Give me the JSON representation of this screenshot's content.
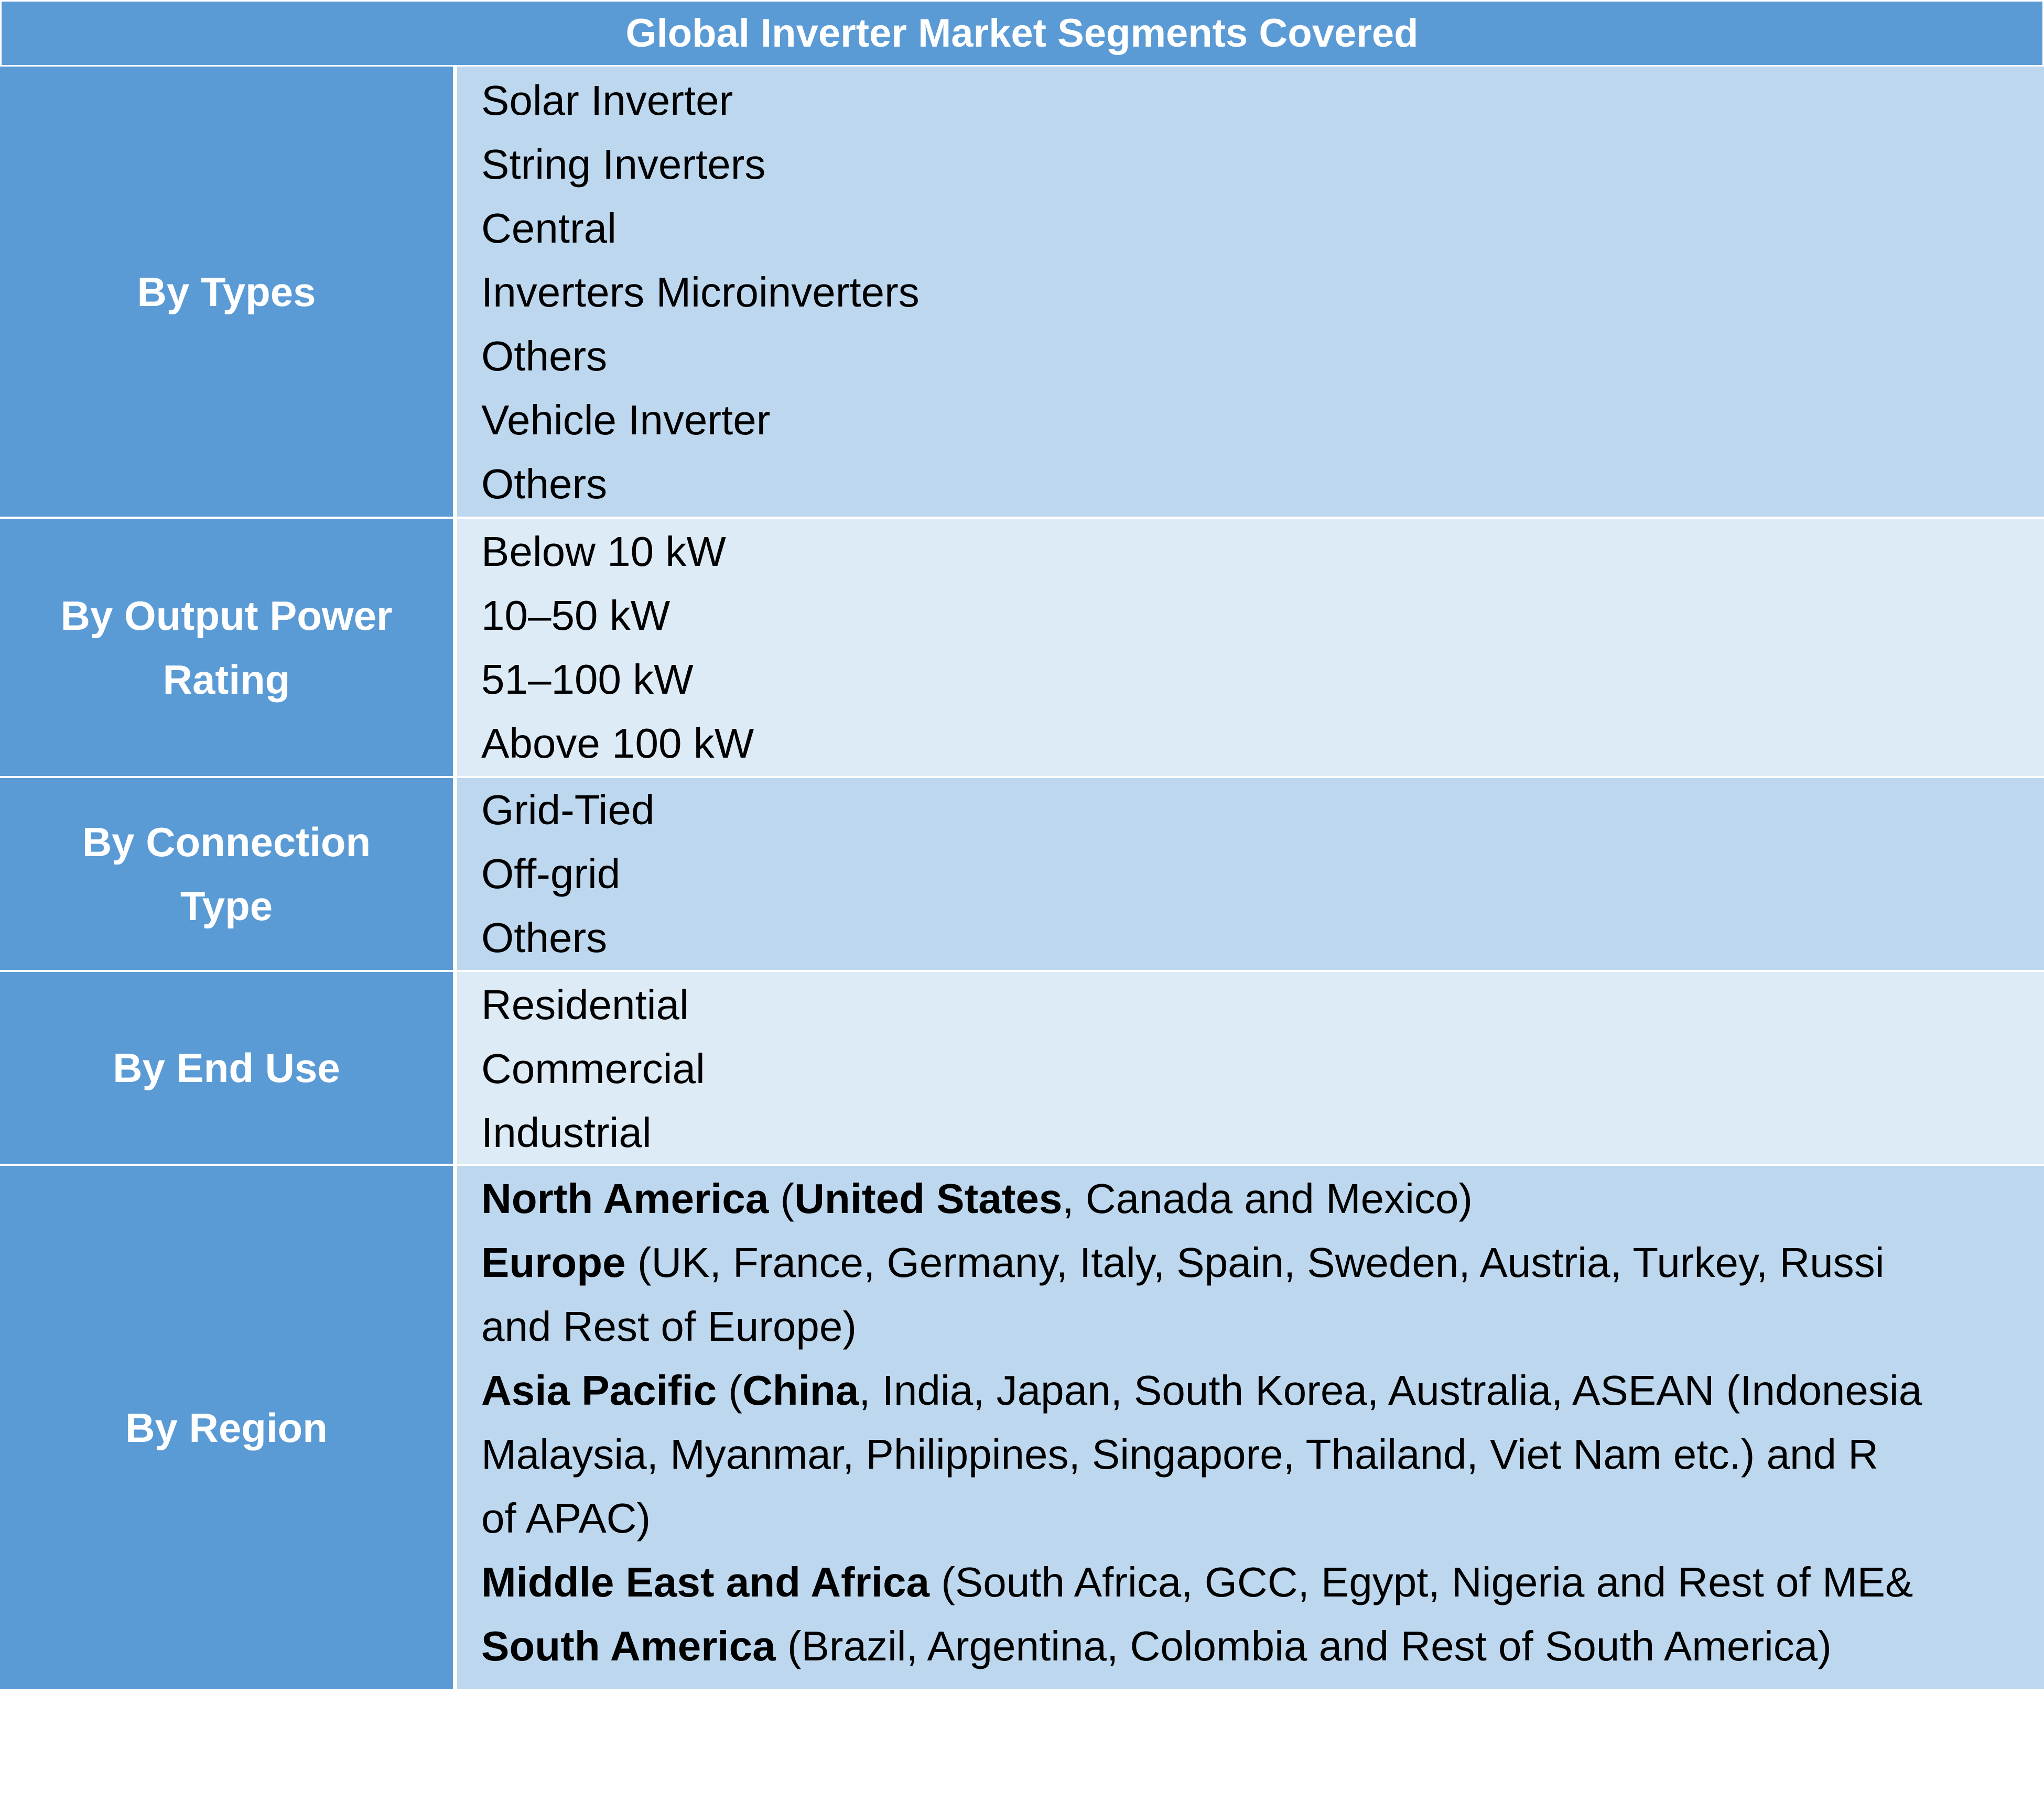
{
  "title": "Global Inverter Market Segments Covered",
  "colors": {
    "header": "#5B9BD5",
    "row_dark": "#BDD7EE",
    "row_light": "#DDEBF7"
  },
  "rows": [
    {
      "label": "By Types",
      "items": [
        "Solar Inverter",
        "String Inverters",
        "Central",
        "Inverters Microinverters",
        "Others",
        "Vehicle Inverter",
        "Others"
      ]
    },
    {
      "label": "By Output Power Rating",
      "items": [
        "Below 10 kW",
        "10–50 kW",
        "51–100 kW",
        "Above 100 kW"
      ]
    },
    {
      "label": "By Connection Type",
      "items": [
        "Grid-Tied",
        "Off-grid",
        "Others"
      ]
    },
    {
      "label": "By End Use",
      "items": [
        "Residential",
        "Commercial",
        "Industrial"
      ]
    },
    {
      "label": "By Region",
      "lines": [
        [
          {
            "text": "North America",
            "bold": true
          },
          {
            "text": " (",
            "bold": false
          },
          {
            "text": "United States",
            "bold": true
          },
          {
            "text": ", Canada and Mexico)",
            "bold": false
          }
        ],
        [
          {
            "text": "Europe",
            "bold": true
          },
          {
            "text": " (UK, France, Germany, Italy, Spain, Sweden, Austria, Turkey, Russi",
            "bold": false
          }
        ],
        [
          {
            "text": "and Rest of Europe)",
            "bold": false
          }
        ],
        [
          {
            "text": "Asia Pacific",
            "bold": true
          },
          {
            "text": " (",
            "bold": false
          },
          {
            "text": "China",
            "bold": true
          },
          {
            "text": ", India, Japan, South Korea, Australia, ASEAN (Indonesia",
            "bold": false
          }
        ],
        [
          {
            "text": "Malaysia, Myanmar, Philippines, Singapore, Thailand, Viet Nam etc.) and R",
            "bold": false
          }
        ],
        [
          {
            "text": "of APAC)",
            "bold": false
          }
        ],
        [
          {
            "text": "Middle East and Africa",
            "bold": true
          },
          {
            "text": " (South Africa, GCC, Egypt, Nigeria and Rest of ME&",
            "bold": false
          }
        ],
        [
          {
            "text": "South America",
            "bold": true
          },
          {
            "text": " (Brazil, Argentina, Colombia and Rest of South America)",
            "bold": false
          }
        ]
      ]
    }
  ]
}
